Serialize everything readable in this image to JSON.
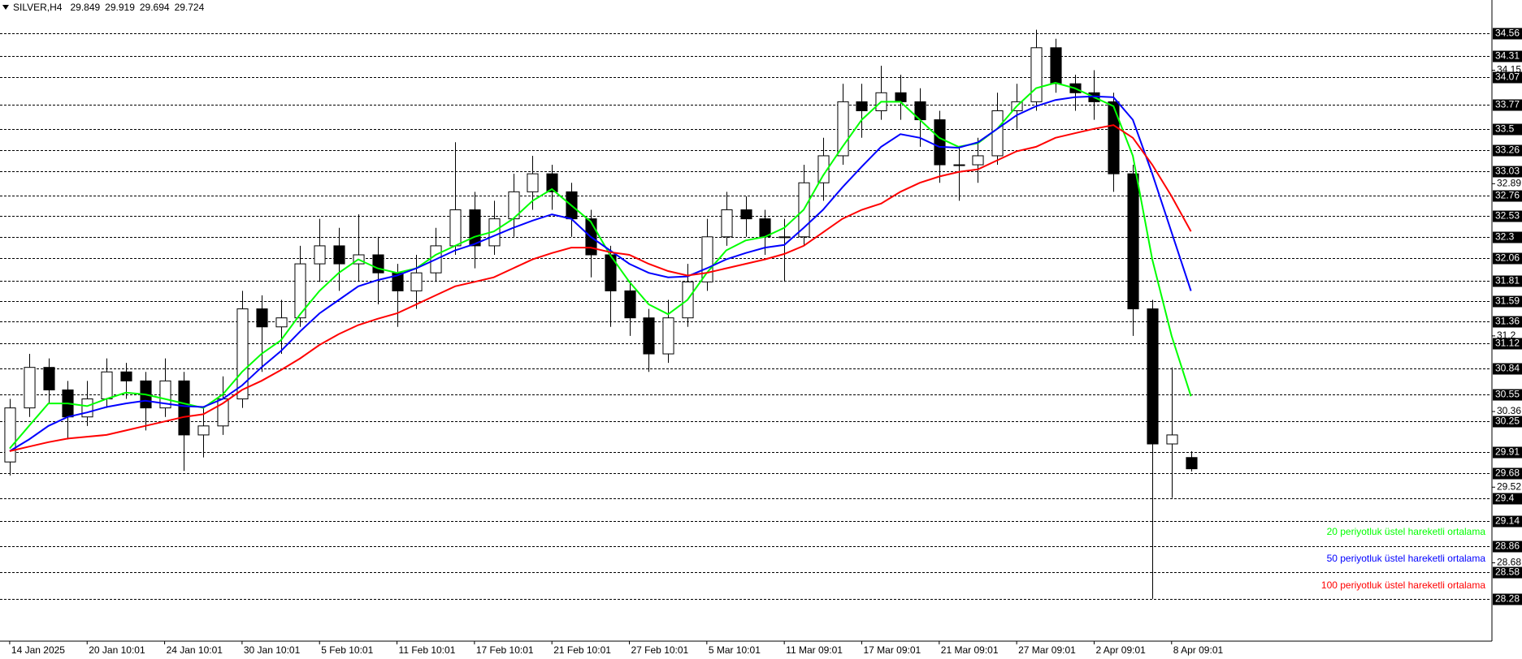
{
  "chart_data": {
    "type": "candlestick",
    "title": "SILVER,H4",
    "xlim": [
      -0.5,
      76.5
    ],
    "ylim": [
      27.81,
      34.93
    ],
    "x_labels": [
      {
        "value": 0,
        "label": "14 Jan 2025"
      },
      {
        "value": 4,
        "label": "20 Jan 10:01"
      },
      {
        "value": 8,
        "label": "24 Jan 10:01"
      },
      {
        "value": 12,
        "label": "30 Jan 10:01"
      },
      {
        "value": 16,
        "label": "5 Feb 10:01"
      },
      {
        "value": 20,
        "label": "11 Feb 10:01"
      },
      {
        "value": 24,
        "label": "17 Feb 10:01"
      },
      {
        "value": 28,
        "label": "21 Feb 10:01"
      },
      {
        "value": 32,
        "label": "27 Feb 10:01"
      },
      {
        "value": 36,
        "label": "5 Mar 10:01"
      },
      {
        "value": 40,
        "label": "11 Mar 09:01"
      },
      {
        "value": 44,
        "label": "17 Mar 09:01"
      },
      {
        "value": 48,
        "label": "21 Mar 09:01"
      },
      {
        "value": 52,
        "label": "27 Mar 09:01"
      },
      {
        "value": 56,
        "label": "2 Apr 09:01"
      },
      {
        "value": 60,
        "label": "8 Apr 09:01"
      }
    ],
    "yticks": [
      34.15,
      32.89,
      31.2,
      30.36,
      29.52,
      28.68
    ],
    "levels": [
      34.56,
      34.31,
      34.07,
      33.77,
      33.5,
      33.26,
      33.03,
      32.76,
      32.53,
      32.3,
      32.06,
      31.81,
      31.59,
      31.36,
      31.12,
      30.84,
      30.55,
      30.25,
      29.91,
      29.68,
      29.4,
      29.14,
      28.86,
      28.58,
      28.28
    ],
    "up_color": "#ffffff",
    "down_color": "#000000",
    "wick_color": "#000000",
    "ohlc": [
      [
        29.8,
        30.5,
        29.65,
        30.4
      ],
      [
        30.4,
        31.0,
        30.3,
        30.85
      ],
      [
        30.85,
        30.95,
        30.45,
        30.6
      ],
      [
        30.6,
        30.7,
        30.05,
        30.3
      ],
      [
        30.3,
        30.7,
        30.2,
        30.5
      ],
      [
        30.5,
        30.95,
        30.4,
        30.8
      ],
      [
        30.8,
        30.9,
        30.5,
        30.7
      ],
      [
        30.7,
        30.8,
        30.15,
        30.4
      ],
      [
        30.4,
        30.95,
        30.3,
        30.7
      ],
      [
        30.7,
        30.8,
        29.7,
        30.1
      ],
      [
        30.1,
        30.4,
        29.85,
        30.2
      ],
      [
        30.2,
        30.75,
        30.1,
        30.5
      ],
      [
        30.5,
        31.7,
        30.4,
        31.5
      ],
      [
        31.5,
        31.65,
        30.8,
        31.3
      ],
      [
        31.3,
        31.6,
        31.0,
        31.4
      ],
      [
        31.4,
        32.2,
        31.3,
        32.0
      ],
      [
        32.0,
        32.5,
        31.8,
        32.2
      ],
      [
        32.2,
        32.4,
        31.7,
        32.0
      ],
      [
        32.0,
        32.55,
        31.8,
        32.1
      ],
      [
        32.1,
        32.3,
        31.55,
        31.9
      ],
      [
        31.9,
        32.0,
        31.3,
        31.7
      ],
      [
        31.7,
        32.1,
        31.5,
        31.9
      ],
      [
        31.9,
        32.4,
        31.8,
        32.2
      ],
      [
        32.2,
        33.35,
        32.1,
        32.6
      ],
      [
        32.6,
        32.8,
        31.95,
        32.2
      ],
      [
        32.2,
        32.7,
        32.1,
        32.5
      ],
      [
        32.5,
        33.0,
        32.3,
        32.8
      ],
      [
        32.8,
        33.2,
        32.6,
        33.0
      ],
      [
        33.0,
        33.1,
        32.6,
        32.8
      ],
      [
        32.8,
        32.9,
        32.3,
        32.5
      ],
      [
        32.5,
        32.6,
        31.85,
        32.1
      ],
      [
        32.1,
        32.2,
        31.3,
        31.7
      ],
      [
        31.7,
        31.8,
        31.2,
        31.4
      ],
      [
        31.4,
        31.5,
        30.8,
        31.0
      ],
      [
        31.0,
        31.6,
        30.9,
        31.4
      ],
      [
        31.4,
        32.0,
        31.3,
        31.8
      ],
      [
        31.8,
        32.5,
        31.7,
        32.3
      ],
      [
        32.3,
        32.8,
        32.2,
        32.6
      ],
      [
        32.6,
        32.75,
        32.3,
        32.5
      ],
      [
        32.5,
        32.6,
        32.1,
        32.3
      ],
      [
        32.3,
        32.5,
        31.8,
        32.3
      ],
      [
        32.3,
        33.1,
        32.2,
        32.9
      ],
      [
        32.9,
        33.4,
        32.7,
        33.2
      ],
      [
        33.2,
        34.0,
        33.1,
        33.8
      ],
      [
        33.8,
        34.0,
        33.4,
        33.7
      ],
      [
        33.7,
        34.2,
        33.6,
        33.9
      ],
      [
        33.9,
        34.1,
        33.6,
        33.8
      ],
      [
        33.8,
        33.95,
        33.3,
        33.6
      ],
      [
        33.6,
        33.7,
        32.9,
        33.1
      ],
      [
        33.1,
        33.3,
        32.7,
        33.1
      ],
      [
        33.1,
        33.4,
        32.9,
        33.2
      ],
      [
        33.2,
        33.9,
        33.1,
        33.7
      ],
      [
        33.7,
        34.0,
        33.5,
        33.8
      ],
      [
        33.8,
        34.6,
        33.7,
        34.4
      ],
      [
        34.4,
        34.5,
        33.9,
        34.0
      ],
      [
        34.0,
        34.1,
        33.7,
        33.9
      ],
      [
        33.9,
        34.15,
        33.6,
        33.8
      ],
      [
        33.8,
        33.9,
        32.8,
        33.0
      ],
      [
        33.0,
        33.1,
        31.2,
        31.5
      ],
      [
        31.5,
        31.6,
        28.28,
        30.0
      ],
      [
        30.0,
        30.85,
        29.4,
        30.1
      ],
      [
        29.849,
        29.919,
        29.694,
        29.724
      ]
    ],
    "series": [
      {
        "name": "20 periyotluk üstel hareketli ortalama",
        "color": "#00ff00",
        "values": [
          29.95,
          30.2,
          30.45,
          30.45,
          30.42,
          30.5,
          30.57,
          30.55,
          30.5,
          30.45,
          30.4,
          30.55,
          30.8,
          31.0,
          31.15,
          31.44,
          31.7,
          31.9,
          32.05,
          31.95,
          31.9,
          31.95,
          32.1,
          32.2,
          32.3,
          32.36,
          32.5,
          32.7,
          32.83,
          32.65,
          32.47,
          32.1,
          31.8,
          31.55,
          31.44,
          31.6,
          31.9,
          32.15,
          32.26,
          32.3,
          32.4,
          32.6,
          32.98,
          33.3,
          33.6,
          33.8,
          33.8,
          33.6,
          33.4,
          33.3,
          33.34,
          33.5,
          33.75,
          33.95,
          34.01,
          33.95,
          33.85,
          33.75,
          33.2,
          32.05,
          31.2,
          30.53
        ]
      },
      {
        "name": "50 periyotluk üstel hareketli ortalama",
        "color": "#0000ff",
        "values": [
          29.92,
          30.05,
          30.2,
          30.3,
          30.35,
          30.41,
          30.45,
          30.48,
          30.45,
          30.42,
          30.41,
          30.5,
          30.65,
          30.85,
          31.03,
          31.25,
          31.45,
          31.6,
          31.75,
          31.82,
          31.87,
          31.95,
          32.05,
          32.15,
          32.22,
          32.31,
          32.4,
          32.48,
          32.55,
          32.5,
          32.3,
          32.15,
          32.0,
          31.9,
          31.85,
          31.86,
          31.95,
          32.05,
          32.12,
          32.18,
          32.21,
          32.4,
          32.6,
          32.85,
          33.08,
          33.3,
          33.44,
          33.4,
          33.3,
          33.29,
          33.35,
          33.5,
          33.65,
          33.75,
          33.82,
          33.85,
          33.86,
          33.85,
          33.6,
          33.0,
          32.35,
          31.7
        ]
      },
      {
        "name": "100 periyotluk üstel hareketli ortalama",
        "color": "#ff0000",
        "values": [
          29.92,
          29.97,
          30.02,
          30.06,
          30.08,
          30.1,
          30.15,
          30.2,
          30.25,
          30.3,
          30.33,
          30.45,
          30.6,
          30.7,
          30.82,
          30.95,
          31.1,
          31.22,
          31.32,
          31.39,
          31.45,
          31.55,
          31.65,
          31.75,
          31.8,
          31.85,
          31.95,
          32.05,
          32.12,
          32.18,
          32.18,
          32.13,
          32.1,
          32.0,
          31.92,
          31.87,
          31.9,
          31.95,
          32.0,
          32.05,
          32.11,
          32.2,
          32.35,
          32.5,
          32.6,
          32.67,
          32.8,
          32.9,
          32.97,
          33.02,
          33.05,
          33.15,
          33.25,
          33.3,
          33.4,
          33.45,
          33.5,
          33.54,
          33.4,
          33.1,
          32.75,
          32.36
        ]
      }
    ]
  }
}
